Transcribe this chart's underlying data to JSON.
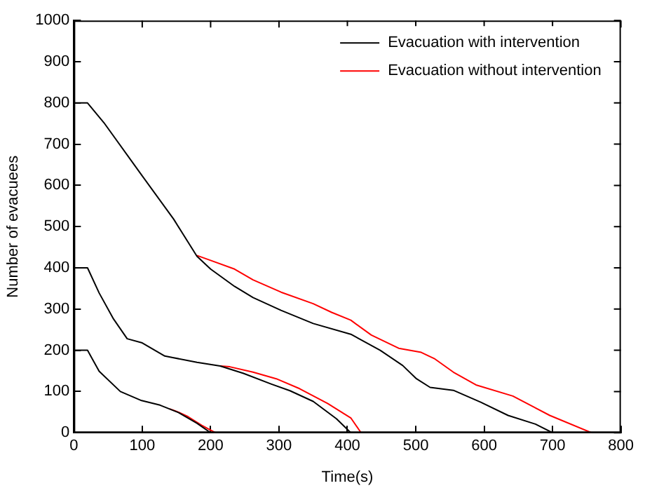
{
  "chart_data": {
    "type": "line",
    "xlabel": "Time(s)",
    "ylabel": "Number of evacuees",
    "xlim": [
      0,
      800
    ],
    "ylim": [
      0,
      1000
    ],
    "xticks": [
      0,
      100,
      200,
      300,
      400,
      500,
      600,
      700,
      800
    ],
    "yticks": [
      0,
      100,
      200,
      300,
      400,
      500,
      600,
      700,
      800,
      900,
      1000
    ],
    "grid": false,
    "legend": "top right",
    "marker": "none",
    "line_style": "solid",
    "series": [
      {
        "name": "Evacuation with intervention",
        "color": "#000000",
        "x": [
          0,
          20,
          44,
          100,
          146,
          180,
          200,
          235,
          262,
          303,
          350,
          405,
          448,
          481,
          501,
          521,
          555,
          595,
          635,
          675,
          700
        ],
        "values": [
          800,
          800,
          752,
          623,
          518,
          428,
          397,
          355,
          328,
          297,
          265,
          239,
          200,
          163,
          131,
          110,
          103,
          74,
          42,
          21,
          0
        ]
      },
      {
        "name": "Evacuation without intervention",
        "color": "#ff0000",
        "x": [
          180,
          200,
          235,
          262,
          303,
          350,
          377,
          405,
          435,
          475,
          508,
          528,
          555,
          588,
          642,
          696,
          757
        ],
        "values": [
          430,
          418,
          397,
          371,
          341,
          313,
          292,
          273,
          237,
          205,
          195,
          179,
          147,
          116,
          89,
          42,
          0
        ]
      },
      {
        "color": "#000000",
        "x": [
          0,
          20,
          37,
          58,
          78,
          100,
          133,
          180,
          214,
          248,
          289,
          316,
          350,
          384,
          405
        ],
        "values": [
          400,
          400,
          339,
          276,
          228,
          218,
          186,
          171,
          162,
          144,
          118,
          102,
          76,
          34,
          0
        ]
      },
      {
        "color": "#ff0000",
        "x": [
          214,
          228,
          262,
          296,
          330,
          371,
          405,
          420
        ],
        "values": [
          162,
          160,
          147,
          131,
          107,
          71,
          36,
          0
        ]
      },
      {
        "color": "#000000",
        "x": [
          0,
          20,
          37,
          68,
          99,
          126,
          153,
          180,
          200
        ],
        "values": [
          200,
          200,
          149,
          100,
          78,
          67,
          49,
          23,
          0
        ]
      },
      {
        "color": "#ff0000",
        "x": [
          140,
          150,
          167,
          187,
          207
        ],
        "values": [
          58,
          52,
          39,
          18,
          0
        ]
      }
    ]
  }
}
